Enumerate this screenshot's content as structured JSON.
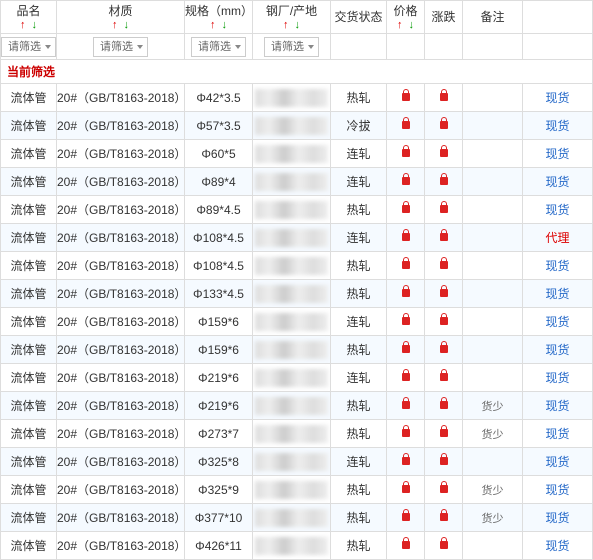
{
  "headers": {
    "name": "品名",
    "material": "材质",
    "spec": "规格（mm）",
    "origin": "钢厂/产地",
    "status": "交货状态",
    "price": "价格",
    "change": "涨跌",
    "note": "备注",
    "remark": ""
  },
  "filter_label": "请筛选",
  "current_filter_label": "当前筛选",
  "colors": {
    "up_arrow": "#d00",
    "down_arrow": "#090",
    "link": "#2468c8",
    "link_red": "#d00",
    "lock": "#d22",
    "zebra": "#f5faff",
    "border": "#ddd"
  },
  "rows": [
    {
      "name": "流体管",
      "material": "20#（GB/T8163-2018）",
      "spec": "Φ42*3.5",
      "status": "热轧",
      "note": "",
      "remark": "现货",
      "remark_red": false
    },
    {
      "name": "流体管",
      "material": "20#（GB/T8163-2018）",
      "spec": "Φ57*3.5",
      "status": "冷拔",
      "note": "",
      "remark": "现货",
      "remark_red": false
    },
    {
      "name": "流体管",
      "material": "20#（GB/T8163-2018）",
      "spec": "Φ60*5",
      "status": "连轧",
      "note": "",
      "remark": "现货",
      "remark_red": false
    },
    {
      "name": "流体管",
      "material": "20#（GB/T8163-2018）",
      "spec": "Φ89*4",
      "status": "连轧",
      "note": "",
      "remark": "现货",
      "remark_red": false
    },
    {
      "name": "流体管",
      "material": "20#（GB/T8163-2018）",
      "spec": "Φ89*4.5",
      "status": "热轧",
      "note": "",
      "remark": "现货",
      "remark_red": false
    },
    {
      "name": "流体管",
      "material": "20#（GB/T8163-2018）",
      "spec": "Φ108*4.5",
      "status": "连轧",
      "note": "",
      "remark": "代理",
      "remark_red": true
    },
    {
      "name": "流体管",
      "material": "20#（GB/T8163-2018）",
      "spec": "Φ108*4.5",
      "status": "热轧",
      "note": "",
      "remark": "现货",
      "remark_red": false
    },
    {
      "name": "流体管",
      "material": "20#（GB/T8163-2018）",
      "spec": "Φ133*4.5",
      "status": "热轧",
      "note": "",
      "remark": "现货",
      "remark_red": false
    },
    {
      "name": "流体管",
      "material": "20#（GB/T8163-2018）",
      "spec": "Φ159*6",
      "status": "连轧",
      "note": "",
      "remark": "现货",
      "remark_red": false
    },
    {
      "name": "流体管",
      "material": "20#（GB/T8163-2018）",
      "spec": "Φ159*6",
      "status": "热轧",
      "note": "",
      "remark": "现货",
      "remark_red": false
    },
    {
      "name": "流体管",
      "material": "20#（GB/T8163-2018）",
      "spec": "Φ219*6",
      "status": "连轧",
      "note": "",
      "remark": "现货",
      "remark_red": false
    },
    {
      "name": "流体管",
      "material": "20#（GB/T8163-2018）",
      "spec": "Φ219*6",
      "status": "热轧",
      "note": "货少",
      "remark": "现货",
      "remark_red": false
    },
    {
      "name": "流体管",
      "material": "20#（GB/T8163-2018）",
      "spec": "Φ273*7",
      "status": "热轧",
      "note": "货少",
      "remark": "现货",
      "remark_red": false
    },
    {
      "name": "流体管",
      "material": "20#（GB/T8163-2018）",
      "spec": "Φ325*8",
      "status": "连轧",
      "note": "",
      "remark": "现货",
      "remark_red": false
    },
    {
      "name": "流体管",
      "material": "20#（GB/T8163-2018）",
      "spec": "Φ325*9",
      "status": "热轧",
      "note": "货少",
      "remark": "现货",
      "remark_red": false
    },
    {
      "name": "流体管",
      "material": "20#（GB/T8163-2018）",
      "spec": "Φ377*10",
      "status": "热轧",
      "note": "货少",
      "remark": "现货",
      "remark_red": false
    },
    {
      "name": "流体管",
      "material": "20#（GB/T8163-2018）",
      "spec": "Φ426*11",
      "status": "热轧",
      "note": "",
      "remark": "现货",
      "remark_red": false
    }
  ]
}
